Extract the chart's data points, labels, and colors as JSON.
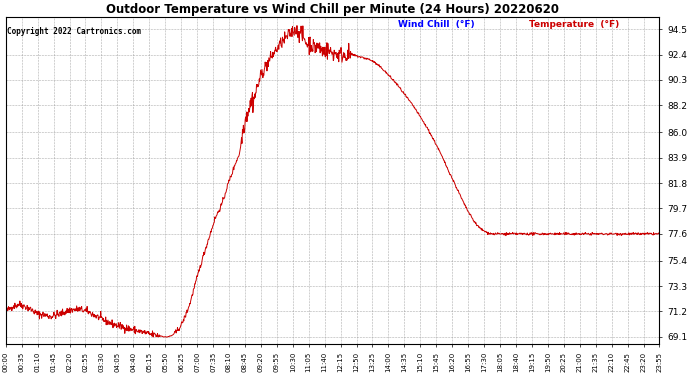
{
  "title": "Outdoor Temperature vs Wind Chill per Minute (24 Hours) 20220620",
  "copyright": "Copyright 2022 Cartronics.com",
  "legend_wind_chill": "Wind Chill  (°F)",
  "legend_temperature": "Temperature  (°F)",
  "wind_chill_color": "#0000ff",
  "temperature_color": "#cc0000",
  "line_color": "#cc0000",
  "background_color": "#ffffff",
  "grid_color": "#999999",
  "yticks": [
    69.1,
    71.2,
    73.3,
    75.4,
    77.6,
    79.7,
    81.8,
    83.9,
    86.0,
    88.2,
    90.3,
    92.4,
    94.5
  ],
  "ylim": [
    68.5,
    95.5
  ],
  "total_minutes": 1440,
  "xtick_labels": [
    "00:00",
    "00:35",
    "01:10",
    "01:45",
    "02:20",
    "02:55",
    "03:30",
    "04:05",
    "04:40",
    "05:15",
    "05:50",
    "06:25",
    "07:00",
    "07:35",
    "08:10",
    "08:45",
    "09:20",
    "09:55",
    "10:30",
    "11:05",
    "11:40",
    "12:15",
    "12:50",
    "13:25",
    "14:00",
    "14:35",
    "15:10",
    "15:45",
    "16:20",
    "16:55",
    "17:30",
    "18:05",
    "18:40",
    "19:15",
    "19:50",
    "20:25",
    "21:00",
    "21:35",
    "22:10",
    "22:45",
    "23:20",
    "23:55"
  ],
  "ctrl_points": [
    [
      0,
      71.2
    ],
    [
      15,
      71.6
    ],
    [
      30,
      71.8
    ],
    [
      50,
      71.5
    ],
    [
      70,
      71.0
    ],
    [
      100,
      70.8
    ],
    [
      120,
      71.0
    ],
    [
      140,
      71.3
    ],
    [
      160,
      71.4
    ],
    [
      180,
      71.2
    ],
    [
      200,
      70.8
    ],
    [
      220,
      70.4
    ],
    [
      240,
      70.1
    ],
    [
      260,
      69.9
    ],
    [
      280,
      69.7
    ],
    [
      300,
      69.5
    ],
    [
      320,
      69.3
    ],
    [
      340,
      69.2
    ],
    [
      350,
      69.1
    ],
    [
      355,
      69.1
    ],
    [
      365,
      69.2
    ],
    [
      375,
      69.5
    ],
    [
      385,
      70.0
    ],
    [
      395,
      70.8
    ],
    [
      405,
      71.8
    ],
    [
      415,
      73.2
    ],
    [
      425,
      74.5
    ],
    [
      435,
      75.8
    ],
    [
      445,
      77.0
    ],
    [
      455,
      78.2
    ],
    [
      460,
      78.8
    ],
    [
      465,
      79.2
    ],
    [
      470,
      79.6
    ],
    [
      475,
      80.0
    ],
    [
      480,
      80.5
    ],
    [
      485,
      81.2
    ],
    [
      490,
      81.8
    ],
    [
      495,
      82.3
    ],
    [
      500,
      82.8
    ],
    [
      505,
      83.4
    ],
    [
      510,
      83.8
    ],
    [
      515,
      84.3
    ],
    [
      518,
      85.2
    ],
    [
      521,
      86.0
    ],
    [
      524,
      86.5
    ],
    [
      527,
      87.0
    ],
    [
      530,
      87.4
    ],
    [
      533,
      87.8
    ],
    [
      536,
      88.0
    ],
    [
      539,
      88.3
    ],
    [
      542,
      88.8
    ],
    [
      545,
      88.5
    ],
    [
      548,
      89.0
    ],
    [
      551,
      89.3
    ],
    [
      554,
      89.8
    ],
    [
      557,
      90.1
    ],
    [
      560,
      90.5
    ],
    [
      563,
      90.8
    ],
    [
      566,
      91.0
    ],
    [
      570,
      91.3
    ],
    [
      575,
      91.6
    ],
    [
      580,
      91.9
    ],
    [
      585,
      92.2
    ],
    [
      590,
      92.5
    ],
    [
      595,
      92.8
    ],
    [
      600,
      93.0
    ],
    [
      605,
      93.3
    ],
    [
      610,
      93.5
    ],
    [
      615,
      93.7
    ],
    [
      620,
      93.9
    ],
    [
      625,
      94.1
    ],
    [
      630,
      94.3
    ],
    [
      635,
      94.4
    ],
    [
      638,
      94.5
    ],
    [
      641,
      94.2
    ],
    [
      644,
      94.4
    ],
    [
      647,
      94.3
    ],
    [
      650,
      94.1
    ],
    [
      655,
      93.8
    ],
    [
      660,
      93.5
    ],
    [
      665,
      93.2
    ],
    [
      670,
      93.4
    ],
    [
      675,
      93.1
    ],
    [
      680,
      92.9
    ],
    [
      685,
      93.1
    ],
    [
      690,
      93.0
    ],
    [
      695,
      92.8
    ],
    [
      700,
      92.6
    ],
    [
      705,
      92.8
    ],
    [
      710,
      92.7
    ],
    [
      715,
      92.6
    ],
    [
      720,
      92.5
    ],
    [
      725,
      92.5
    ],
    [
      730,
      92.4
    ],
    [
      740,
      92.4
    ],
    [
      750,
      92.4
    ],
    [
      760,
      92.4
    ],
    [
      770,
      92.3
    ],
    [
      780,
      92.2
    ],
    [
      790,
      92.1
    ],
    [
      800,
      92.0
    ],
    [
      810,
      91.8
    ],
    [
      820,
      91.5
    ],
    [
      830,
      91.2
    ],
    [
      840,
      90.8
    ],
    [
      850,
      90.4
    ],
    [
      860,
      90.0
    ],
    [
      870,
      89.5
    ],
    [
      880,
      89.0
    ],
    [
      890,
      88.5
    ],
    [
      900,
      88.0
    ],
    [
      910,
      87.4
    ],
    [
      920,
      86.8
    ],
    [
      930,
      86.2
    ],
    [
      940,
      85.5
    ],
    [
      950,
      84.8
    ],
    [
      960,
      84.0
    ],
    [
      970,
      83.2
    ],
    [
      980,
      82.4
    ],
    [
      990,
      81.6
    ],
    [
      1000,
      80.8
    ],
    [
      1010,
      80.0
    ],
    [
      1020,
      79.3
    ],
    [
      1030,
      78.7
    ],
    [
      1040,
      78.2
    ],
    [
      1050,
      77.9
    ],
    [
      1060,
      77.7
    ],
    [
      1070,
      77.6
    ],
    [
      1080,
      77.6
    ],
    [
      1090,
      77.6
    ],
    [
      1100,
      77.6
    ],
    [
      1110,
      77.6
    ],
    [
      1120,
      77.6
    ],
    [
      1130,
      77.6
    ],
    [
      1140,
      77.6
    ],
    [
      1150,
      77.6
    ],
    [
      1160,
      77.6
    ],
    [
      1170,
      77.6
    ],
    [
      1180,
      77.6
    ],
    [
      1190,
      77.6
    ],
    [
      1200,
      77.6
    ],
    [
      1210,
      77.6
    ],
    [
      1220,
      77.6
    ],
    [
      1230,
      77.6
    ],
    [
      1240,
      77.6
    ],
    [
      1250,
      77.6
    ],
    [
      1260,
      77.6
    ],
    [
      1270,
      77.6
    ],
    [
      1280,
      77.6
    ],
    [
      1290,
      77.6
    ],
    [
      1300,
      77.6
    ],
    [
      1310,
      77.6
    ],
    [
      1320,
      77.6
    ],
    [
      1330,
      77.6
    ],
    [
      1340,
      77.6
    ],
    [
      1350,
      77.6
    ],
    [
      1360,
      77.6
    ],
    [
      1370,
      77.6
    ],
    [
      1380,
      77.6
    ],
    [
      1390,
      77.6
    ],
    [
      1400,
      77.6
    ],
    [
      1410,
      77.6
    ],
    [
      1420,
      77.6
    ],
    [
      1430,
      77.6
    ],
    [
      1439,
      77.6
    ]
  ]
}
